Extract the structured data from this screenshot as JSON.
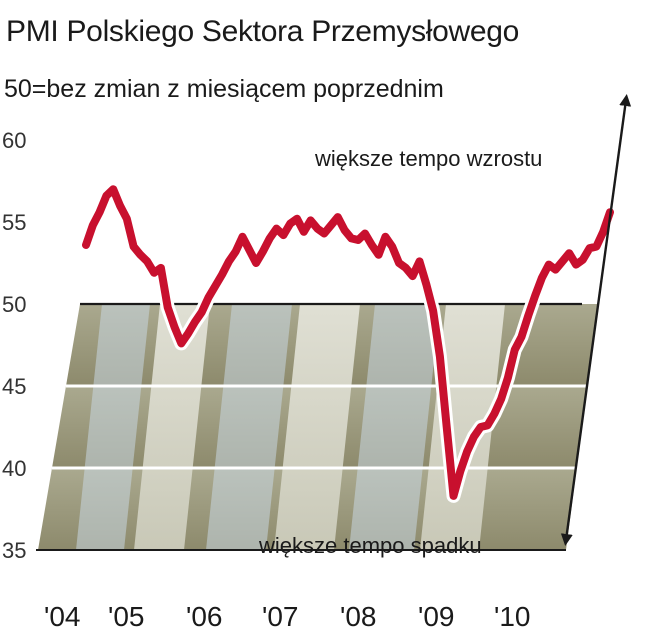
{
  "chart_data": {
    "type": "line",
    "title": "PMI Polskiego Sektora Przemysłowego",
    "subtitle": "50=bez zmian z miesiącem poprzednim",
    "xlabel": "",
    "ylabel": "",
    "ylim": [
      35,
      60
    ],
    "yticks": [
      "60",
      "55",
      "50",
      "45",
      "40",
      "35"
    ],
    "xticks": [
      "'04",
      "'05",
      "'06",
      "'07",
      "'08",
      "'09",
      "'10"
    ],
    "reference_line": 50,
    "annotations": {
      "up": "większe tempo wzrostu",
      "down": "większe tempo spadku"
    },
    "colors": {
      "line": "#c8102e",
      "line_outline": "#ffffff",
      "band_dark": "#9c9a7e",
      "band_light": "#dedfd2",
      "band_blue": "#c9d7e2",
      "axis": "#1a1a1a"
    },
    "series": [
      {
        "values": [
          53.6,
          54.8,
          55.6,
          56.6,
          57.0,
          56.0,
          55.2,
          53.5,
          53.0,
          52.6,
          51.9,
          52.2,
          49.8,
          48.6,
          47.6,
          48.2,
          48.9,
          49.5,
          50.4,
          51.1,
          51.8,
          52.6,
          53.2,
          54.1,
          53.3,
          52.5,
          53.2,
          54.0,
          54.6,
          54.2,
          54.9,
          55.2,
          54.4,
          55.1,
          54.6,
          54.3,
          54.8,
          55.3,
          54.5,
          54.0,
          53.9,
          54.3,
          53.6,
          53.0,
          54.1,
          53.5,
          52.5,
          52.2,
          51.7,
          52.6,
          51.2,
          49.6,
          46.8,
          42.5,
          38.3,
          39.8,
          41.0,
          41.9,
          42.5,
          42.6,
          43.3,
          44.2,
          45.5,
          47.2,
          48.0,
          49.3,
          50.5,
          51.6,
          52.4,
          52.1,
          52.6,
          53.1,
          52.4,
          52.7,
          53.4,
          53.5,
          54.4,
          55.6
        ]
      }
    ]
  }
}
